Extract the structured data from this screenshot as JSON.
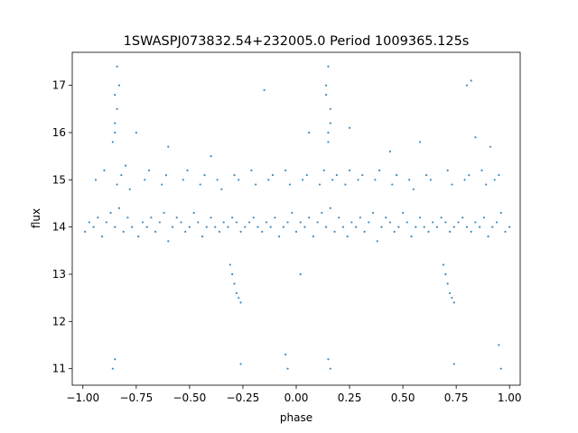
{
  "chart_data": {
    "type": "scatter",
    "title": "1SWASPJ073832.54+232005.0 Period 1009365.125s",
    "xlabel": "phase",
    "ylabel": "flux",
    "xlim": [
      -1.05,
      1.05
    ],
    "ylim": [
      10.65,
      17.7
    ],
    "x_ticks": [
      -1.0,
      -0.75,
      -0.5,
      -0.25,
      0.0,
      0.25,
      0.5,
      0.75,
      1.0
    ],
    "x_tick_labels": [
      "−1.00",
      "−0.75",
      "−0.50",
      "−0.25",
      "0.00",
      "0.25",
      "0.50",
      "0.75",
      "1.00"
    ],
    "y_ticks": [
      11,
      12,
      13,
      14,
      15,
      16,
      17
    ],
    "y_tick_labels": [
      "11",
      "12",
      "13",
      "14",
      "15",
      "16",
      "17"
    ],
    "grid": false,
    "marker_color": "#1f77b4",
    "series": [
      {
        "x": [
          -0.99,
          -0.97,
          -0.95,
          -0.93,
          -0.91,
          -0.89,
          -0.87,
          -0.85,
          -0.83,
          -0.81,
          -0.79,
          -0.77,
          -0.74,
          -0.72,
          -0.7,
          -0.68,
          -0.66,
          -0.64,
          -0.62,
          -0.6,
          -0.58,
          -0.56,
          -0.54,
          -0.52,
          -0.5,
          -0.48,
          -0.46,
          -0.44,
          -0.42,
          -0.4,
          -0.38,
          -0.36,
          -0.34,
          -0.32,
          -0.3,
          -0.28,
          -0.26,
          -0.24,
          -0.22,
          -0.2,
          -0.18,
          -0.16,
          -0.14,
          -0.12,
          -0.1,
          -0.08,
          -0.06,
          -0.04,
          -0.02,
          0.0,
          0.02,
          0.04,
          0.06,
          0.08,
          0.1,
          0.12,
          0.14,
          0.16,
          0.18,
          0.2,
          0.22,
          0.24,
          0.26,
          0.28,
          0.3,
          0.32,
          0.34,
          0.36,
          0.38,
          0.4,
          0.42,
          0.44,
          0.46,
          0.48,
          0.5,
          0.52,
          0.54,
          0.56,
          0.58,
          0.6,
          0.62,
          0.64,
          0.66,
          0.68,
          0.7,
          0.72,
          0.74,
          0.76,
          0.78,
          0.8,
          0.82,
          0.84,
          0.86,
          0.88,
          0.9,
          0.92,
          0.94,
          0.96,
          0.98,
          1.0,
          -0.94,
          -0.9,
          -0.84,
          -0.82,
          -0.8,
          -0.78,
          -0.71,
          -0.69,
          -0.63,
          -0.61,
          -0.53,
          -0.51,
          -0.45,
          -0.43,
          -0.37,
          -0.35,
          -0.29,
          -0.27,
          -0.21,
          -0.19,
          -0.13,
          -0.11,
          -0.05,
          -0.03,
          0.03,
          0.05,
          0.11,
          0.13,
          0.17,
          0.19,
          0.23,
          0.25,
          0.29,
          0.31,
          0.37,
          0.39,
          0.45,
          0.47,
          0.53,
          0.55,
          0.61,
          0.63,
          0.71,
          0.73,
          0.79,
          0.81,
          0.87,
          0.89,
          0.93,
          0.95,
          -0.85,
          -0.84,
          -0.83,
          -0.86,
          -0.85,
          -0.84,
          -0.85,
          0.15,
          0.16,
          0.14,
          0.15,
          0.16,
          0.15,
          0.14,
          -0.3,
          -0.29,
          -0.31,
          -0.28,
          -0.27,
          -0.26,
          0.7,
          0.71,
          0.69,
          0.72,
          0.73,
          0.74,
          -0.85,
          -0.86,
          0.15,
          0.16,
          -0.26,
          0.74,
          -0.05,
          -0.04,
          0.95,
          0.96,
          -0.75,
          -0.6,
          -0.4,
          0.06,
          0.25,
          0.44,
          0.58,
          0.84,
          0.91,
          -0.15,
          0.02,
          0.82,
          0.8
        ],
        "y": [
          13.9,
          14.1,
          14.0,
          14.2,
          13.8,
          14.1,
          14.3,
          14.0,
          14.4,
          13.9,
          14.2,
          14.0,
          13.8,
          14.1,
          14.0,
          14.2,
          13.9,
          14.1,
          14.3,
          13.7,
          14.0,
          14.2,
          14.1,
          13.9,
          14.0,
          14.3,
          14.1,
          13.8,
          14.0,
          14.2,
          14.0,
          13.9,
          14.1,
          14.0,
          14.2,
          14.1,
          13.9,
          14.0,
          14.1,
          14.2,
          14.0,
          13.9,
          14.1,
          14.0,
          14.2,
          13.8,
          14.0,
          14.1,
          14.3,
          13.9,
          14.1,
          14.0,
          14.2,
          13.8,
          14.1,
          14.3,
          14.0,
          14.4,
          13.9,
          14.2,
          14.0,
          13.8,
          14.1,
          14.0,
          14.2,
          13.9,
          14.1,
          14.3,
          13.7,
          14.0,
          14.2,
          14.1,
          13.9,
          14.0,
          14.3,
          14.1,
          13.8,
          14.0,
          14.2,
          14.0,
          13.9,
          14.1,
          14.0,
          14.2,
          14.1,
          13.9,
          14.0,
          14.1,
          14.2,
          14.0,
          13.9,
          14.1,
          14.0,
          14.2,
          13.8,
          14.0,
          14.1,
          14.3,
          13.9,
          14.0,
          15.0,
          15.2,
          14.9,
          15.1,
          15.3,
          14.8,
          15.0,
          15.2,
          14.9,
          15.1,
          15.0,
          15.2,
          14.9,
          15.1,
          15.0,
          14.8,
          15.1,
          15.0,
          15.2,
          14.9,
          15.0,
          15.1,
          15.2,
          14.9,
          15.0,
          15.1,
          14.9,
          15.2,
          15.0,
          15.1,
          14.9,
          15.2,
          15.0,
          15.1,
          15.0,
          15.2,
          14.9,
          15.1,
          15.0,
          14.8,
          15.1,
          15.0,
          15.2,
          14.9,
          15.0,
          15.1,
          15.2,
          14.9,
          15.0,
          15.1,
          16.0,
          16.5,
          17.0,
          15.8,
          16.2,
          17.4,
          16.8,
          16.0,
          16.5,
          17.0,
          15.8,
          16.2,
          17.4,
          16.8,
          13.0,
          12.8,
          13.2,
          12.6,
          12.5,
          12.4,
          13.0,
          12.8,
          13.2,
          12.6,
          12.5,
          12.4,
          11.2,
          11.0,
          11.2,
          11.0,
          11.1,
          11.1,
          11.3,
          11.0,
          11.5,
          11.0,
          16.0,
          15.7,
          15.5,
          16.0,
          16.1,
          15.6,
          15.8,
          15.9,
          15.7,
          16.9,
          13.0,
          17.1,
          17.0
        ]
      }
    ]
  }
}
